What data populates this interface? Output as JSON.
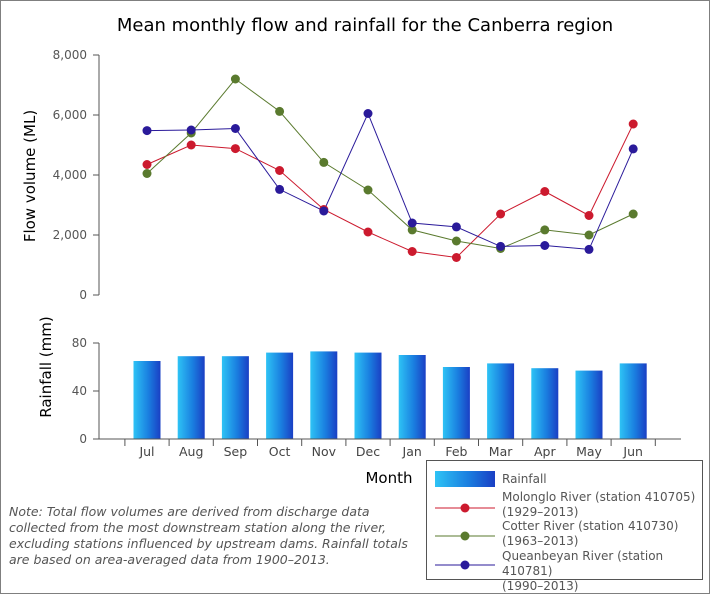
{
  "chart_data": [
    {
      "type": "line",
      "title": "Mean monthly flow and rainfall for the Canberra region",
      "ylabel": "Flow volume (ML)",
      "ylim": [
        0,
        8000
      ],
      "yticks": [
        "8,000",
        "6,000",
        "4,000",
        "2,000",
        "0"
      ],
      "categories": [
        "Jul",
        "Aug",
        "Sep",
        "Oct",
        "Nov",
        "Dec",
        "Jan",
        "Feb",
        "Mar",
        "Apr",
        "May",
        "Jun"
      ],
      "series": [
        {
          "name": "Molonglo River (station 410705)",
          "period": "(1929–2013)",
          "color": "#cc1a2e",
          "values": [
            4350,
            5000,
            4880,
            4150,
            2850,
            2100,
            1450,
            1250,
            2700,
            3450,
            2650,
            5700
          ]
        },
        {
          "name": "Cotter River (station 410730)",
          "period": "(1963–2013)",
          "color": "#5a7a2e",
          "values": [
            4050,
            5400,
            7200,
            6120,
            4420,
            3500,
            2170,
            1800,
            1550,
            2170,
            2000,
            2700
          ]
        },
        {
          "name": "Queanbeyan River (station 410781)",
          "period": "(1990–2013)",
          "color": "#2a1a9a",
          "values": [
            5480,
            5500,
            5550,
            3520,
            2800,
            6050,
            2400,
            2270,
            1620,
            1650,
            1520,
            4870
          ]
        }
      ]
    },
    {
      "type": "bar",
      "ylabel": "Rainfall (mm)",
      "xlabel": "Month",
      "ylim": [
        0,
        100
      ],
      "yticks": [
        "80",
        "40",
        "0"
      ],
      "categories": [
        "Jul",
        "Aug",
        "Sep",
        "Oct",
        "Nov",
        "Dec",
        "Jan",
        "Feb",
        "Mar",
        "Apr",
        "May",
        "Jun"
      ],
      "series": [
        {
          "name": "Rainfall",
          "values": [
            65,
            69,
            69,
            72,
            73,
            72,
            70,
            60,
            63,
            59,
            57,
            63
          ]
        }
      ]
    }
  ],
  "note": "Note: Total flow volumes are derived from discharge data collected from the most downstream station along the river, excluding stations influenced by upstream dams. Rainfall totals are based on area-averaged data from 1900–2013."
}
